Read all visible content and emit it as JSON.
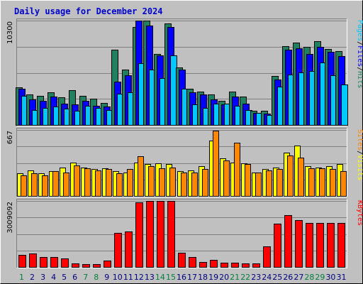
{
  "chart_data": {
    "type": "bar",
    "title": "Daily usage for December 2024",
    "days": [
      "1",
      "2",
      "3",
      "4",
      "5",
      "6",
      "7",
      "8",
      "9",
      "10",
      "11",
      "12",
      "13",
      "14",
      "15",
      "16",
      "17",
      "18",
      "19",
      "20",
      "21",
      "22",
      "23",
      "24",
      "25",
      "26",
      "27",
      "28",
      "29",
      "30",
      "31"
    ],
    "weekend_days": [
      "1",
      "7",
      "8",
      "14",
      "15",
      "21",
      "22",
      "28",
      "29"
    ],
    "colors": {
      "hits": "#208060",
      "files": "#0000ff",
      "pages": "#00c8ff",
      "visits": "#ffff00",
      "sites": "#ff8800",
      "kbytes": "#ff0000",
      "weekday_label": "#000080",
      "weekend_label": "#008040"
    },
    "panels": [
      {
        "name": "hits-files-pages",
        "ymax_label": "10300",
        "ymax": 10300,
        "legend": [
          {
            "text": "Pages",
            "color": "#00c8ff"
          },
          {
            "text": "/",
            "color": "#000000"
          },
          {
            "text": "Files",
            "color": "#0000ff"
          },
          {
            "text": "/",
            "color": "#000000"
          },
          {
            "text": "Hits",
            "color": "#208060"
          }
        ],
        "series": [
          {
            "name": "Hits",
            "color": "#208060",
            "values": [
              3700,
              3000,
              2900,
              3200,
              2700,
              3400,
              2900,
              2600,
              2200,
              7400,
              5500,
              9700,
              10300,
              7000,
              10000,
              5700,
              3600,
              3300,
              3000,
              2400,
              3300,
              2800,
              1400,
              1400,
              4800,
              7800,
              8100,
              7700,
              8300,
              7500,
              7300
            ]
          },
          {
            "name": "Files",
            "color": "#0000ff",
            "values": [
              3600,
              2500,
              2400,
              2800,
              2100,
              2000,
              2400,
              1900,
              1800,
              4300,
              4900,
              10300,
              9800,
              6900,
              9700,
              5500,
              3200,
              3000,
              2500,
              2000,
              2800,
              2100,
              1200,
              1100,
              4500,
              7400,
              7600,
              7000,
              7700,
              7200,
              6800
            ]
          },
          {
            "name": "Pages",
            "color": "#00c8ff",
            "values": [
              2900,
              1500,
              1700,
              1800,
              1600,
              1400,
              1900,
              1700,
              1500,
              3100,
              3200,
              6100,
              5500,
              4600,
              6900,
              3600,
              2000,
              1700,
              2100,
              2100,
              1900,
              1500,
              1200,
              1000,
              3800,
              5000,
              5200,
              5300,
              6200,
              4900,
              4000
            ]
          }
        ]
      },
      {
        "name": "visits-sites",
        "ymax_label": "667",
        "ymax": 667,
        "legend": [
          {
            "text": "Sites",
            "color": "#ff8800"
          },
          {
            "text": "/",
            "color": "#000000"
          },
          {
            "text": "Visits",
            "color": "#ffff00"
          }
        ],
        "series": [
          {
            "name": "Visits",
            "color": "#ffff00",
            "values": [
              230,
              260,
              230,
              250,
              290,
              340,
              290,
              270,
              280,
              250,
              240,
              340,
              320,
              330,
              320,
              250,
              260,
              300,
              560,
              380,
              340,
              330,
              240,
              270,
              290,
              440,
              510,
              300,
              290,
              300,
              320
            ]
          },
          {
            "name": "Sites",
            "color": "#ff8800",
            "values": [
              210,
              230,
              210,
              250,
              240,
              310,
              280,
              260,
              270,
              230,
              270,
              400,
              300,
              280,
              290,
              240,
              240,
              270,
              660,
              360,
              540,
              320,
              240,
              260,
              270,
              410,
              390,
              280,
              280,
              270,
              250
            ]
          }
        ]
      },
      {
        "name": "kbytes",
        "ymax_label": "3009092",
        "ymax": 3009092,
        "legend": [
          {
            "text": "KBytes",
            "color": "#ff0000"
          }
        ],
        "series": [
          {
            "name": "KBytes",
            "color": "#ff0000",
            "values": [
              550000,
              620000,
              440000,
              450000,
              400000,
              160000,
              140000,
              140000,
              300000,
              1540000,
              1630000,
              2960000,
              3940000,
              3700000,
              4050000,
              640000,
              440000,
              230000,
              330000,
              200000,
              180000,
              150000,
              170000,
              940000,
              1980000,
              2350000,
              2150000,
              2020000,
              2020000,
              2020000,
              2020000
            ]
          }
        ]
      }
    ]
  }
}
